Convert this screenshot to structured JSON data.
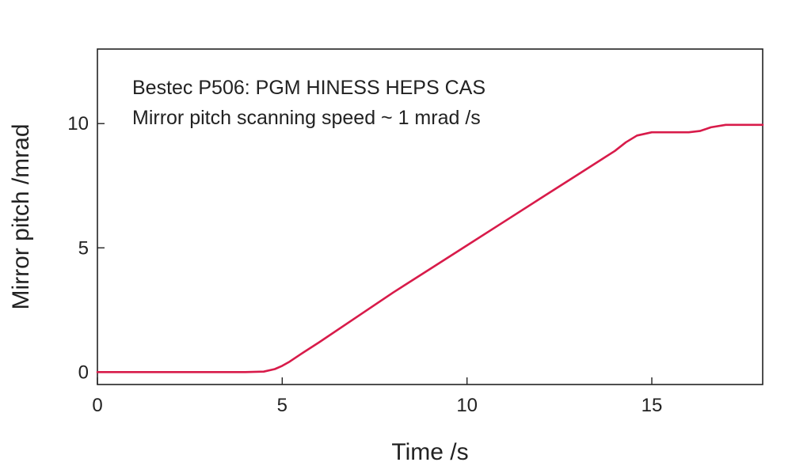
{
  "chart_data": {
    "type": "line",
    "title": "",
    "xlabel": "Time /s",
    "ylabel": "Mirror pitch /mrad",
    "xlim": [
      0,
      18
    ],
    "ylim": [
      -0.5,
      13
    ],
    "xticks": [
      0,
      5,
      10,
      15
    ],
    "xtick_labels": [
      "0",
      "5",
      "10",
      "15"
    ],
    "yticks": [
      0,
      5,
      10
    ],
    "ytick_labels": [
      "0",
      "5",
      "10"
    ],
    "grid": false,
    "legend": "none",
    "annotations": [
      "Bestec P506: PGM HINESS HEPS CAS",
      "Mirror pitch scanning speed ~ 1 mrad /s"
    ],
    "series": [
      {
        "color": "#d81b4a",
        "x": [
          0,
          2,
          4,
          4.5,
          4.8,
          5.0,
          5.2,
          5.5,
          6,
          7,
          8,
          9,
          10,
          11,
          12,
          13,
          14,
          14.3,
          14.6,
          15.0,
          15.5,
          16.0,
          16.3,
          16.6,
          17.0,
          17.5,
          18.0
        ],
        "y": [
          0,
          0,
          0,
          0.02,
          0.12,
          0.25,
          0.42,
          0.72,
          1.2,
          2.2,
          3.2,
          4.15,
          5.1,
          6.05,
          7.0,
          7.95,
          8.9,
          9.25,
          9.52,
          9.65,
          9.65,
          9.65,
          9.7,
          9.85,
          9.95,
          9.95,
          9.95
        ]
      }
    ]
  }
}
